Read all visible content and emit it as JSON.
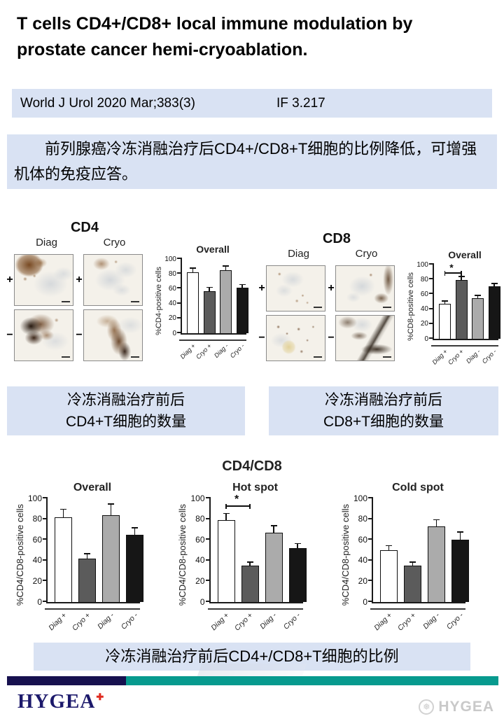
{
  "header": {
    "title_lines": [
      "T cells CD4+/CD8+ local immune modulation by",
      "prostate cancer hemi-cryoablation."
    ],
    "journal": "World J Urol 2020 Mar;383(3)",
    "impact_factor": "IF 3.217"
  },
  "abstract_cn": "前列腺癌冷冻消融治疗后CD4+/CD8+T细胞的比例降低，可增强机体的免疫应答。",
  "panels": {
    "cd4": {
      "title": "CD4",
      "col_labels": [
        "Diag",
        "Cryo"
      ],
      "row_labels": [
        "+",
        "−"
      ]
    },
    "cd8": {
      "title": "CD8",
      "col_labels": [
        "Diag",
        "Cryo"
      ],
      "row_labels": [
        "+",
        "−"
      ]
    },
    "ratio_title": "CD4/CD8"
  },
  "captions": {
    "cd4_lines": [
      "冷冻消融治疗前后",
      "CD4+T细胞的数量"
    ],
    "cd8_lines": [
      "冷冻消融治疗前后",
      "CD8+T细胞的数量"
    ],
    "ratio": "冷冻消融治疗前后CD4+/CD8+T细胞的比例"
  },
  "footer": {
    "logo_text": "HYGEA",
    "logo_mark_glyph": "✚",
    "watermark_text": "HYGEA",
    "watermark_icon_glyph": "❅"
  },
  "colors": {
    "panel_blue": "#d9e2f3",
    "footer_navy": "#17114f",
    "footer_teal": "#079a8e",
    "logo_navy": "#1c196b",
    "logo_red": "#e02b20",
    "bar_white": "#ffffff",
    "bar_darkgray": "#5b5b5b",
    "bar_lightgray": "#ababab",
    "bar_black": "#161616"
  },
  "chart_defaults": {
    "categories": [
      "Diag +",
      "Cryo +",
      "Diag -",
      "Cryo -"
    ],
    "ylim": [
      0,
      100
    ],
    "yticks": [
      0,
      20,
      40,
      60,
      80,
      100
    ],
    "bar_colors": [
      "#ffffff",
      "#5b5b5b",
      "#ababab",
      "#161616"
    ],
    "grid": false,
    "legend": "none"
  },
  "chart_data": [
    {
      "id": "cd4-overall",
      "type": "bar",
      "title": "Overall",
      "ylabel": "%CD4-positive cells",
      "values": [
        82,
        57,
        85,
        61
      ],
      "errors": [
        5,
        4,
        5,
        4
      ]
    },
    {
      "id": "cd8-overall",
      "type": "bar",
      "title": "Overall",
      "ylabel": "%CD8-positive cells",
      "values": [
        47,
        79,
        55,
        71
      ],
      "errors": [
        3,
        4,
        3,
        3
      ],
      "significance": {
        "from": 0,
        "to": 1,
        "y": 88,
        "label": "*"
      }
    },
    {
      "id": "ratio-overall",
      "type": "bar",
      "title": "Overall",
      "ylabel": "%CD4/CD8-positive cells",
      "values": [
        82,
        42,
        84,
        65
      ],
      "errors": [
        7,
        4,
        10,
        6
      ]
    },
    {
      "id": "ratio-hotspot",
      "type": "bar",
      "title": "Hot spot",
      "ylabel": "%CD4/CD8-positive cells",
      "values": [
        79,
        35,
        67,
        52
      ],
      "errors": [
        6,
        3,
        6,
        4
      ],
      "significance": {
        "from": 0,
        "to": 1,
        "y": 92,
        "label": "*"
      }
    },
    {
      "id": "ratio-coldspot",
      "type": "bar",
      "title": "Cold spot",
      "ylabel": "%CD4/CD8-positive cells",
      "values": [
        50,
        35,
        73,
        60
      ],
      "errors": [
        4,
        3,
        6,
        7
      ]
    }
  ]
}
